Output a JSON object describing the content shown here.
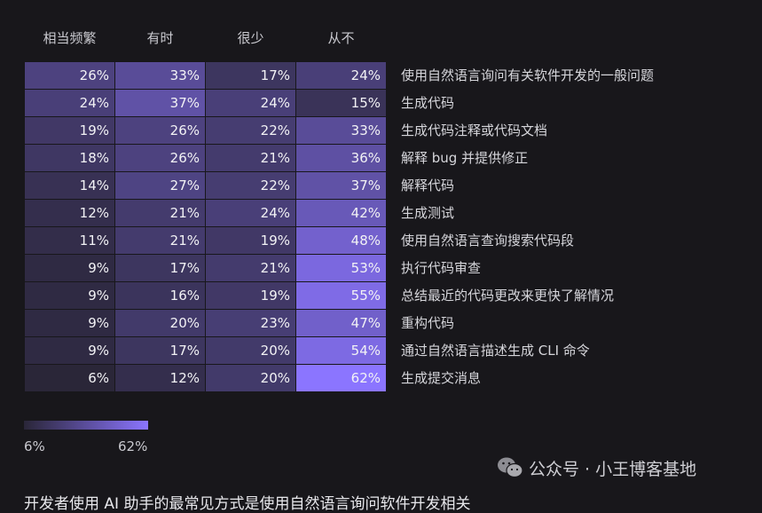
{
  "chart_data": {
    "type": "heatmap",
    "columns": [
      "相当频繁",
      "有时",
      "很少",
      "从不"
    ],
    "rows": [
      {
        "label": "使用自然语言询问有关软件开发的一般问题",
        "values": [
          26,
          33,
          17,
          24
        ]
      },
      {
        "label": "生成代码",
        "values": [
          24,
          37,
          24,
          15
        ]
      },
      {
        "label": "生成代码注释或代码文档",
        "values": [
          19,
          26,
          22,
          33
        ]
      },
      {
        "label": "解释 bug 并提供修正",
        "values": [
          18,
          26,
          21,
          36
        ]
      },
      {
        "label": "解释代码",
        "values": [
          14,
          27,
          22,
          37
        ]
      },
      {
        "label": "生成测试",
        "values": [
          12,
          21,
          24,
          42
        ]
      },
      {
        "label": "使用自然语言查询搜索代码段",
        "values": [
          11,
          21,
          19,
          48
        ]
      },
      {
        "label": "执行代码审查",
        "values": [
          9,
          17,
          21,
          53
        ]
      },
      {
        "label": "总结最近的代码更改来更快了解情况",
        "values": [
          9,
          16,
          19,
          55
        ]
      },
      {
        "label": "重构代码",
        "values": [
          9,
          20,
          23,
          47
        ]
      },
      {
        "label": "通过自然语言描述生成 CLI 命令",
        "values": [
          9,
          17,
          20,
          54
        ]
      },
      {
        "label": "生成提交消息",
        "values": [
          6,
          12,
          20,
          62
        ]
      }
    ],
    "value_suffix": "%",
    "color_scale": {
      "min": 6,
      "max": 62,
      "min_label": "6%",
      "max_label": "62%",
      "min_color": "#2a2638",
      "max_color": "#8b75ff"
    }
  },
  "watermark": {
    "icon": "wechat-icon",
    "text": "公众号 · 小王博客基地"
  },
  "footer": {
    "cut_text": "开发者使用 AI 助手的最常见方式是使用自然语言询问软件开发相关"
  },
  "colors": {
    "background": "#18171b"
  }
}
